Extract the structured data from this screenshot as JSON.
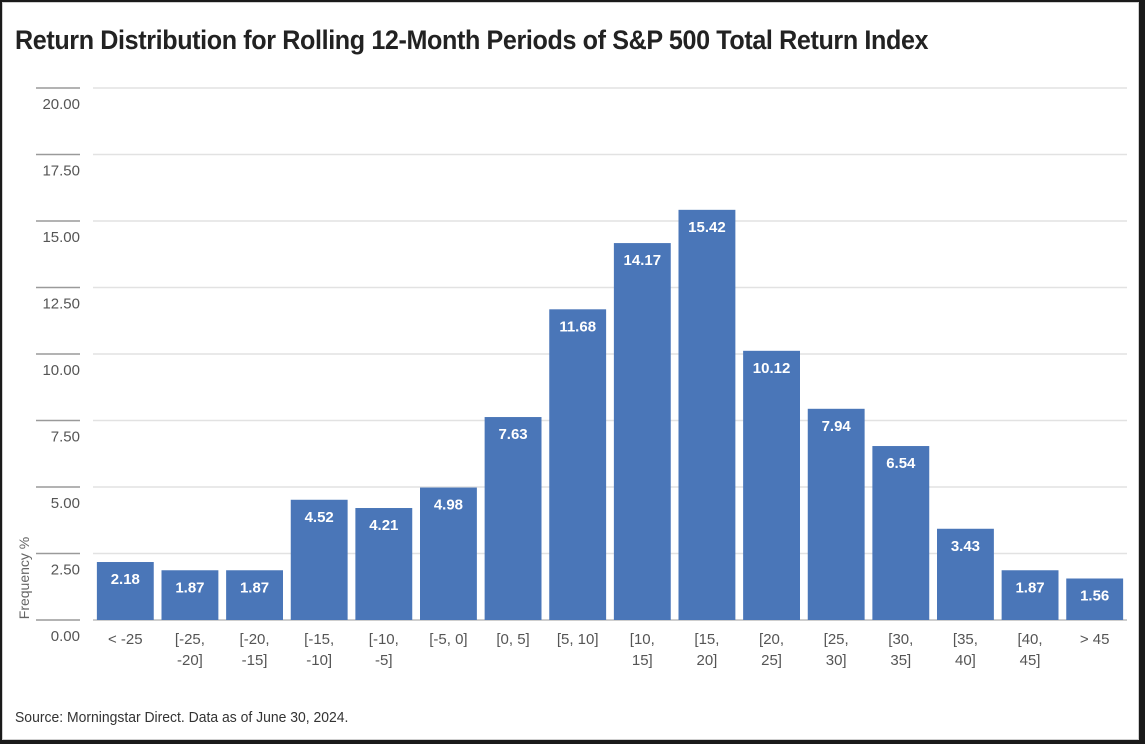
{
  "title": "Return Distribution for Rolling 12-Month Periods of S&P 500 Total Return Index",
  "source": "Source: Morningstar Direct. Data as of June 30, 2024.",
  "chart_data": {
    "type": "bar",
    "title": "Return Distribution for Rolling 12-Month Periods of S&P 500 Total Return Index",
    "xlabel": "",
    "ylabel": "Frequency %",
    "ylim": [
      0,
      20
    ],
    "yticks": [
      "20.00",
      "17.50",
      "15.00",
      "12.50",
      "10.00",
      "7.50",
      "5.00",
      "2.50",
      "0.00"
    ],
    "ytick_values": [
      20,
      17.5,
      15,
      12.5,
      10,
      7.5,
      5,
      2.5,
      0
    ],
    "grid": true,
    "legend": "none",
    "bar_color": "#4a76b8",
    "categories": [
      [
        "< -25"
      ],
      [
        "[-25,",
        "-20]"
      ],
      [
        "[-20,",
        "-15]"
      ],
      [
        "[-15,",
        "-10]"
      ],
      [
        "[-10,",
        "-5]"
      ],
      [
        "[-5, 0]"
      ],
      [
        "[0, 5]"
      ],
      [
        "[5, 10]"
      ],
      [
        "[10,",
        "15]"
      ],
      [
        "[15,",
        "20]"
      ],
      [
        "[20,",
        "25]"
      ],
      [
        "[25,",
        "30]"
      ],
      [
        "[30,",
        "35]"
      ],
      [
        "[35,",
        "40]"
      ],
      [
        "[40,",
        "45]"
      ],
      [
        "> 45"
      ]
    ],
    "values": [
      2.18,
      1.87,
      1.87,
      4.52,
      4.21,
      4.98,
      7.63,
      11.68,
      14.17,
      15.42,
      10.12,
      7.94,
      6.54,
      3.43,
      1.87,
      1.56
    ],
    "data_labels": [
      "2.18",
      "1.87",
      "1.87",
      "4.52",
      "4.21",
      "4.98",
      "7.63",
      "11.68",
      "14.17",
      "15.42",
      "10.12",
      "7.94",
      "6.54",
      "3.43",
      "1.87",
      "1.56"
    ]
  }
}
